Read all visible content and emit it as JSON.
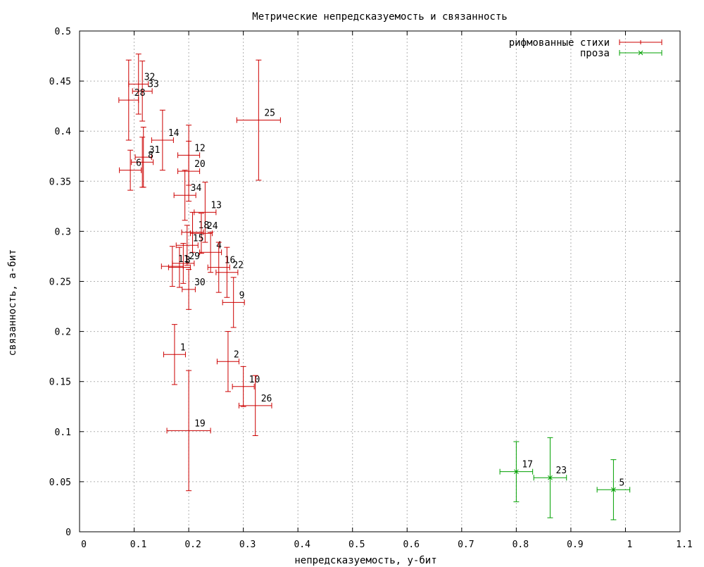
{
  "chart_data": {
    "type": "scatter",
    "title": "Метрические непредсказуемость и связанность",
    "xlabel": "непредсказуемость, у-бит",
    "ylabel": "связанность, а-бит",
    "xlim": [
      0,
      1.1
    ],
    "ylim": [
      0,
      0.5
    ],
    "x_ticks": [
      "0",
      "0.1",
      "0.2",
      "0.3",
      "0.4",
      "0.5",
      "0.6",
      "0.7",
      "0.8",
      "0.9",
      "1",
      "1.1"
    ],
    "y_ticks": [
      "0",
      "0.05",
      "0.1",
      "0.15",
      "0.2",
      "0.25",
      "0.3",
      "0.35",
      "0.4",
      "0.45",
      "0.5"
    ],
    "grid": true,
    "legend_position": "top-right",
    "series": [
      {
        "name": "рифмованные стихи",
        "color": "#cc0000",
        "marker": "plus",
        "points": [
          {
            "label": "32",
            "x": 0.108,
            "y": 0.447,
            "xerr": 0.018,
            "yerr": 0.03
          },
          {
            "label": "33",
            "x": 0.115,
            "y": 0.44,
            "xerr": 0.018,
            "yerr": 0.03
          },
          {
            "label": "28",
            "x": 0.09,
            "y": 0.431,
            "xerr": 0.018,
            "yerr": 0.04
          },
          {
            "label": "25",
            "x": 0.328,
            "y": 0.411,
            "xerr": 0.04,
            "yerr": 0.06
          },
          {
            "label": "14",
            "x": 0.152,
            "y": 0.391,
            "xerr": 0.02,
            "yerr": 0.03
          },
          {
            "label": "12",
            "x": 0.2,
            "y": 0.376,
            "xerr": 0.02,
            "yerr": 0.03
          },
          {
            "label": "31",
            "x": 0.117,
            "y": 0.374,
            "xerr": 0.015,
            "yerr": 0.03
          },
          {
            "label": "8",
            "x": 0.115,
            "y": 0.369,
            "xerr": 0.02,
            "yerr": 0.025
          },
          {
            "label": "6",
            "x": 0.093,
            "y": 0.361,
            "xerr": 0.02,
            "yerr": 0.02
          },
          {
            "label": "20",
            "x": 0.2,
            "y": 0.36,
            "xerr": 0.02,
            "yerr": 0.03
          },
          {
            "label": "34",
            "x": 0.193,
            "y": 0.336,
            "xerr": 0.02,
            "yerr": 0.025
          },
          {
            "label": "13",
            "x": 0.23,
            "y": 0.319,
            "xerr": 0.02,
            "yerr": 0.03
          },
          {
            "label": "18",
            "x": 0.207,
            "y": 0.299,
            "xerr": 0.02,
            "yerr": 0.02
          },
          {
            "label": "24",
            "x": 0.223,
            "y": 0.298,
            "xerr": 0.02,
            "yerr": 0.02
          },
          {
            "label": "15",
            "x": 0.197,
            "y": 0.286,
            "xerr": 0.02,
            "yerr": 0.02
          },
          {
            "label": "4",
            "x": 0.24,
            "y": 0.279,
            "xerr": 0.02,
            "yerr": 0.02
          },
          {
            "label": "16",
            "x": 0.255,
            "y": 0.264,
            "xerr": 0.02,
            "yerr": 0.025
          },
          {
            "label": "22",
            "x": 0.27,
            "y": 0.259,
            "xerr": 0.02,
            "yerr": 0.025
          },
          {
            "label": "29",
            "x": 0.19,
            "y": 0.268,
            "xerr": 0.02,
            "yerr": 0.02
          },
          {
            "label": "3",
            "x": 0.183,
            "y": 0.264,
            "xerr": 0.02,
            "yerr": 0.02
          },
          {
            "label": "11",
            "x": 0.17,
            "y": 0.265,
            "xerr": 0.02,
            "yerr": 0.02
          },
          {
            "label": "30",
            "x": 0.2,
            "y": 0.242,
            "xerr": 0.012,
            "yerr": 0.02
          },
          {
            "label": "9",
            "x": 0.282,
            "y": 0.229,
            "xerr": 0.02,
            "yerr": 0.025
          },
          {
            "label": "1",
            "x": 0.174,
            "y": 0.177,
            "xerr": 0.02,
            "yerr": 0.03
          },
          {
            "label": "2",
            "x": 0.272,
            "y": 0.17,
            "xerr": 0.02,
            "yerr": 0.03
          },
          {
            "label": "10",
            "x": 0.3,
            "y": 0.145,
            "xerr": 0.02,
            "yerr": 0.02
          },
          {
            "label": "26",
            "x": 0.322,
            "y": 0.126,
            "xerr": 0.03,
            "yerr": 0.03
          },
          {
            "label": "19",
            "x": 0.2,
            "y": 0.101,
            "xerr": 0.04,
            "yerr": 0.06
          }
        ]
      },
      {
        "name": "проза",
        "color": "#00a000",
        "marker": "cross",
        "points": [
          {
            "label": "17",
            "x": 0.8,
            "y": 0.06,
            "xerr": 0.03,
            "yerr": 0.03
          },
          {
            "label": "23",
            "x": 0.862,
            "y": 0.054,
            "xerr": 0.03,
            "yerr": 0.04
          },
          {
            "label": "5",
            "x": 0.978,
            "y": 0.042,
            "xerr": 0.03,
            "yerr": 0.03
          }
        ]
      }
    ]
  }
}
